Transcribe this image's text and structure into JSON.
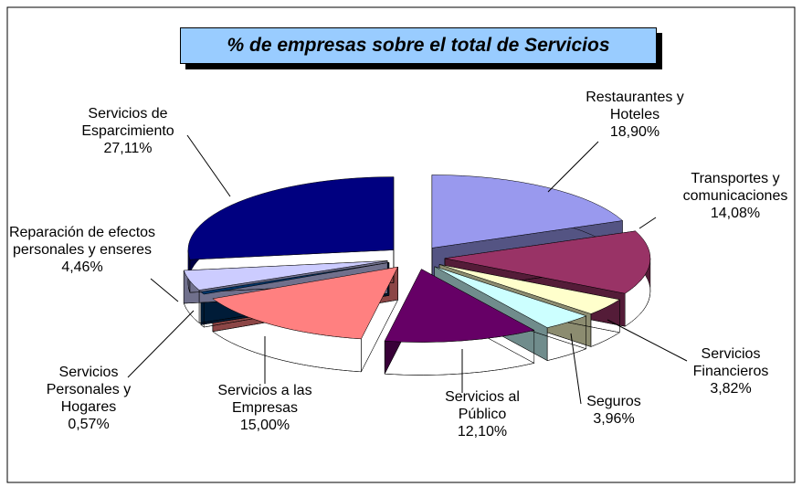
{
  "chart_data": {
    "type": "pie",
    "title": "% de empresas sobre el total de Servicios",
    "categories": [
      "Restaurantes y Hoteles",
      "Transportes y comunicaciones",
      "Servicios Financieros",
      "Seguros",
      "Servicios al Público",
      "Servicios a las Empresas",
      "Servicios Personales y Hogares",
      "Reparación de efectos personales y enseres",
      "Servicios de Esparcimiento"
    ],
    "values": [
      18.9,
      14.08,
      3.82,
      3.96,
      12.1,
      15.0,
      0.57,
      4.46,
      27.11
    ],
    "value_labels": [
      "18,90%",
      "14,08%",
      "3,82%",
      "3,96%",
      "12,10%",
      "15,00%",
      "0,57%",
      "4,46%",
      "27,11%"
    ],
    "colors": [
      "#9999ee",
      "#993366",
      "#ffffcc",
      "#ccffff",
      "#660066",
      "#ff8080",
      "#003366",
      "#ccccff",
      "#000080"
    ]
  }
}
